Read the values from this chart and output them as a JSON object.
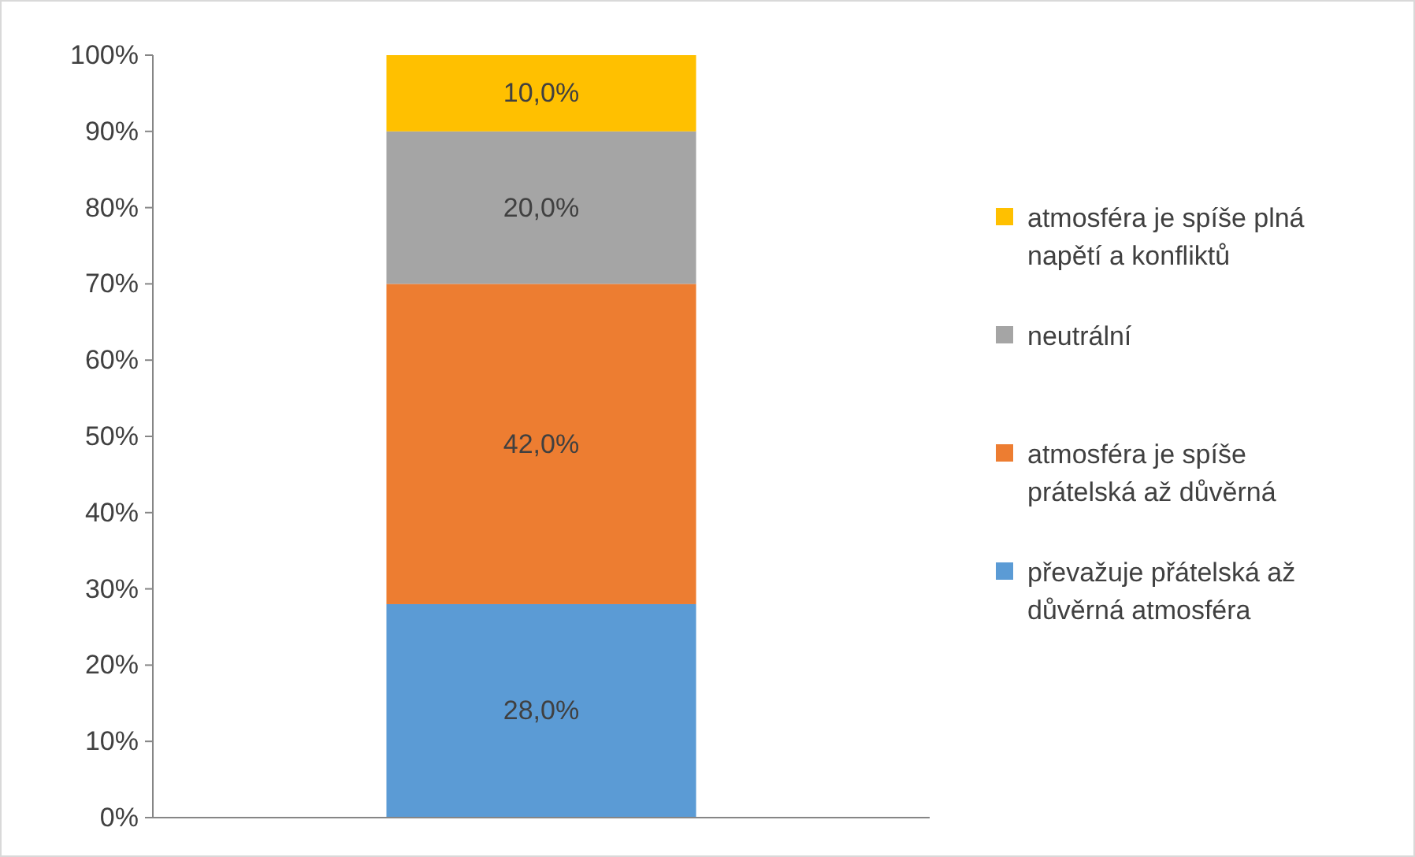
{
  "chart_data": {
    "type": "bar",
    "stacked": true,
    "categories": [
      null
    ],
    "ylim": [
      0,
      100
    ],
    "yticks": [
      {
        "value": 0,
        "label": "0%"
      },
      {
        "value": 10,
        "label": "10%"
      },
      {
        "value": 20,
        "label": "20%"
      },
      {
        "value": 30,
        "label": "30%"
      },
      {
        "value": 40,
        "label": "40%"
      },
      {
        "value": 50,
        "label": "50%"
      },
      {
        "value": 60,
        "label": "60%"
      },
      {
        "value": 70,
        "label": "70%"
      },
      {
        "value": 80,
        "label": "80%"
      },
      {
        "value": 90,
        "label": "90%"
      },
      {
        "value": 100,
        "label": "100%"
      }
    ],
    "legend": "right",
    "series": [
      {
        "name": "převažuje přátelská až důvěrná atmosféra",
        "color": "#5b9bd5",
        "values": [
          28
        ],
        "value_labels": [
          "28,0%"
        ]
      },
      {
        "name": "atmosféra je spíše prátelská až důvěrná",
        "color": "#ed7d31",
        "values": [
          42
        ],
        "value_labels": [
          "42,0%"
        ]
      },
      {
        "name": "neutrální",
        "color": "#a5a5a5",
        "values": [
          20
        ],
        "value_labels": [
          "20,0%"
        ]
      },
      {
        "name": "atmosféra je spíše plná napětí a konfliktů",
        "color": "#ffc000",
        "values": [
          10
        ],
        "value_labels": [
          "10,0%"
        ]
      }
    ]
  }
}
